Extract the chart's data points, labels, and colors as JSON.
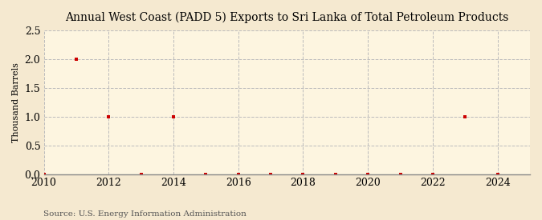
{
  "title": "Annual West Coast (PADD 5) Exports to Sri Lanka of Total Petroleum Products",
  "ylabel": "Thousand Barrels",
  "source_text": "Source: U.S. Energy Information Administration",
  "background_color": "#f5e9d0",
  "plot_background_color": "#fdf5e0",
  "marker_color": "#cc0000",
  "grid_color": "#bbbbbb",
  "xlim": [
    2010,
    2025
  ],
  "ylim": [
    0.0,
    2.5
  ],
  "xticks": [
    2010,
    2012,
    2014,
    2016,
    2018,
    2020,
    2022,
    2024
  ],
  "yticks": [
    0.0,
    0.5,
    1.0,
    1.5,
    2.0,
    2.5
  ],
  "years": [
    2010,
    2011,
    2012,
    2013,
    2014,
    2015,
    2016,
    2017,
    2018,
    2019,
    2020,
    2021,
    2022,
    2023,
    2024
  ],
  "values": [
    0.0,
    2.0,
    1.0,
    0.0,
    1.0,
    0.0,
    0.0,
    0.0,
    0.0,
    0.0,
    0.0,
    0.0,
    0.0,
    1.0,
    0.0
  ],
  "title_fontsize": 10,
  "tick_fontsize": 9,
  "ylabel_fontsize": 8
}
